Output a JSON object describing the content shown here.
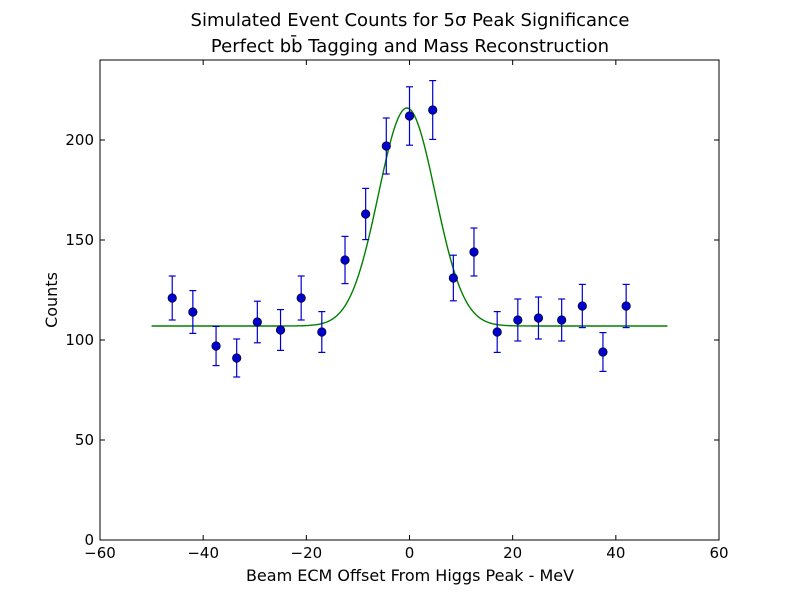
{
  "chart_data": {
    "type": "scatter",
    "title_line1": "Simulated Event Counts for 5σ Peak Significance",
    "title_line2": "Perfect bb̄ Tagging and Mass Reconstruction",
    "xlabel": "Beam ECM Offset From Higgs Peak - MeV",
    "ylabel": "Counts",
    "xlim": [
      -60,
      60
    ],
    "ylim": [
      0,
      240
    ],
    "xticks": [
      -60,
      -40,
      -20,
      0,
      20,
      40,
      60
    ],
    "yticks": [
      0,
      50,
      100,
      150,
      200
    ],
    "xtick_labels": [
      "−60",
      "−40",
      "−20",
      "0",
      "20",
      "40",
      "60"
    ],
    "ytick_labels": [
      "0",
      "50",
      "100",
      "150",
      "200"
    ],
    "grid": false,
    "legend": "none",
    "colors": {
      "points": "#0000cc",
      "errorbars": "#0000cc",
      "fit": "#008000"
    },
    "series": [
      {
        "kind": "points_with_errorbars",
        "x": [
          -46,
          -42,
          -37.5,
          -33.5,
          -29.5,
          -25,
          -21,
          -17,
          -12.5,
          -8.5,
          -4.5,
          0,
          4.5,
          8.5,
          12.5,
          17,
          21,
          25,
          29.5,
          33.5,
          37.5,
          42
        ],
        "y": [
          121,
          114,
          97,
          91,
          109,
          105,
          121,
          104,
          140,
          163,
          197,
          212,
          215,
          131,
          144,
          104,
          110,
          111,
          110,
          117,
          94,
          117
        ],
        "yerr": [
          11,
          10.7,
          9.8,
          9.5,
          10.4,
          10.2,
          11,
          10.2,
          11.8,
          12.8,
          14,
          14.6,
          14.7,
          11.4,
          12,
          10.2,
          10.5,
          10.5,
          10.5,
          10.8,
          9.7,
          10.8
        ]
      },
      {
        "kind": "fit_curve",
        "function": "gaussian_plus_constant",
        "baseline": 107,
        "amplitude": 109,
        "mean": -0.5,
        "sigma": 5.5,
        "x_range": [
          -50,
          50
        ]
      }
    ]
  }
}
